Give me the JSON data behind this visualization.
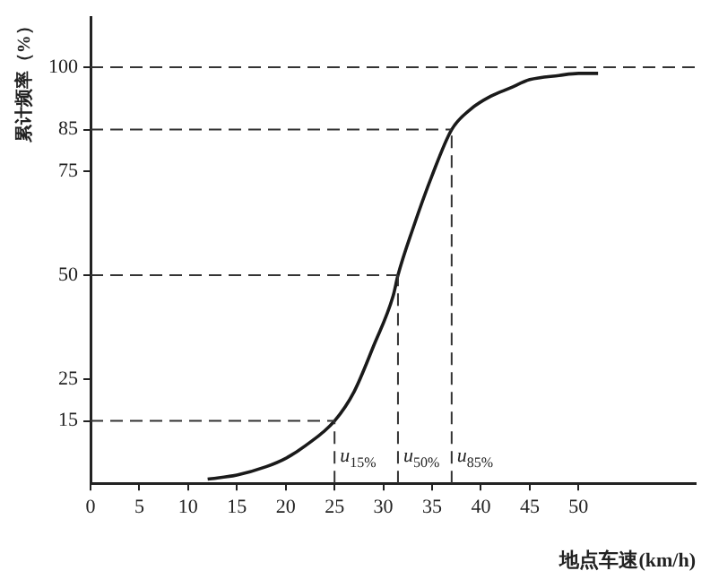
{
  "chart_data": {
    "type": "line",
    "xlabel": "地点车速(km/h)",
    "ylabel": "累计频率（%）",
    "x": [
      12,
      15,
      18,
      20,
      22,
      25,
      27,
      29,
      31,
      31.5,
      33,
      35,
      37,
      39,
      41,
      43,
      45,
      48,
      50,
      52
    ],
    "series": [
      {
        "color": "#1a1a1a",
        "values": [
          1,
          2,
          4,
          6,
          9,
          15,
          22,
          33,
          45,
          50,
          61,
          74,
          85,
          90,
          93,
          95,
          97,
          98,
          98.5,
          98.5
        ]
      }
    ],
    "xlim": [
      0,
      62
    ],
    "xticks": [
      0,
      5,
      10,
      15,
      20,
      25,
      30,
      35,
      40,
      45,
      50
    ],
    "ylim": [
      0,
      112
    ],
    "yticks": [
      15,
      25,
      50,
      75,
      85,
      100
    ],
    "ref_lines": [
      {
        "axis": "y",
        "value": 15,
        "line_style": "dashed"
      },
      {
        "axis": "y",
        "value": 50,
        "line_style": "dashed"
      },
      {
        "axis": "y",
        "value": 85,
        "line_style": "dashed"
      },
      {
        "axis": "y",
        "value": 100,
        "line_style": "dashed"
      },
      {
        "axis": "x",
        "value": 25,
        "label": "u$_{15%}$",
        "line_style": "dashed"
      },
      {
        "axis": "x",
        "value": 31.5,
        "label": "u$_{50%}$",
        "line_style": "dashed"
      },
      {
        "axis": "x",
        "value": 37,
        "label": "u$_{85%}$",
        "line_style": "dashed"
      }
    ],
    "grid": false,
    "legend": false,
    "marker": "none",
    "line_style": "solid"
  }
}
